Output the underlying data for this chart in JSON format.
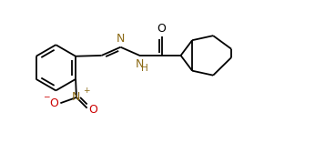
{
  "background": "#ffffff",
  "bond_color": "#000000",
  "atom_colors": {
    "N": "#8B6914",
    "O": "#cc0000",
    "default": "#000000"
  },
  "line_width": 1.3,
  "font_size": 7.5,
  "figsize": [
    3.57,
    1.57
  ],
  "dpi": 100,
  "xlim": [
    0.0,
    8.5
  ],
  "ylim": [
    0.3,
    4.0
  ]
}
